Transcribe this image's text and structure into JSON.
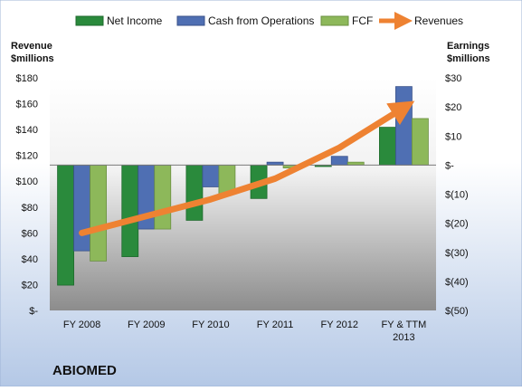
{
  "chart_data": {
    "type": "bar",
    "title": "",
    "company": "ABIOMED",
    "categories": [
      "FY 2008",
      "FY 2009",
      "FY 2010",
      "FY 2011",
      "FY 2012",
      "FY & TTM 2013"
    ],
    "y_left": {
      "label_line1": "Revenue",
      "label_line2": "$millions",
      "ylim": [
        0,
        180
      ],
      "ticks": [
        0,
        20,
        40,
        60,
        80,
        100,
        120,
        140,
        160,
        180
      ],
      "tick_labels": [
        "$-",
        "$20",
        "$40",
        "$60",
        "$80",
        "$100",
        "$120",
        "$140",
        "$160",
        "$180"
      ]
    },
    "y_right": {
      "label_line1": "Earnings",
      "label_line2": "$millions",
      "ylim": [
        -50,
        30
      ],
      "ticks": [
        -50,
        -40,
        -30,
        -20,
        -10,
        0,
        10,
        20,
        30
      ],
      "tick_labels": [
        "$(50)",
        "$(40)",
        "$(30)",
        "$(20)",
        "$(10)",
        "$-",
        "$10",
        "$20",
        "$30"
      ]
    },
    "series": [
      {
        "name": "Net Income",
        "axis": "right",
        "color": "#2a8a3c",
        "values": [
          -41.3,
          -31.5,
          -19,
          -11.5,
          -0.5,
          13
        ]
      },
      {
        "name": "Cash from Operations",
        "axis": "right",
        "color": "#4f6fb3",
        "values": [
          -29.5,
          -22,
          -7.5,
          1,
          3,
          27
        ]
      },
      {
        "name": "FCF",
        "axis": "right",
        "color": "#8db85a",
        "values": [
          -33,
          -22,
          -10,
          -1,
          1,
          16
        ]
      },
      {
        "name": "Revenues",
        "axis": "left",
        "color": "#ee8232",
        "type": "line",
        "values": [
          60,
          73,
          86,
          102,
          126,
          157
        ]
      }
    ],
    "legend_position": "top",
    "grid": false
  }
}
